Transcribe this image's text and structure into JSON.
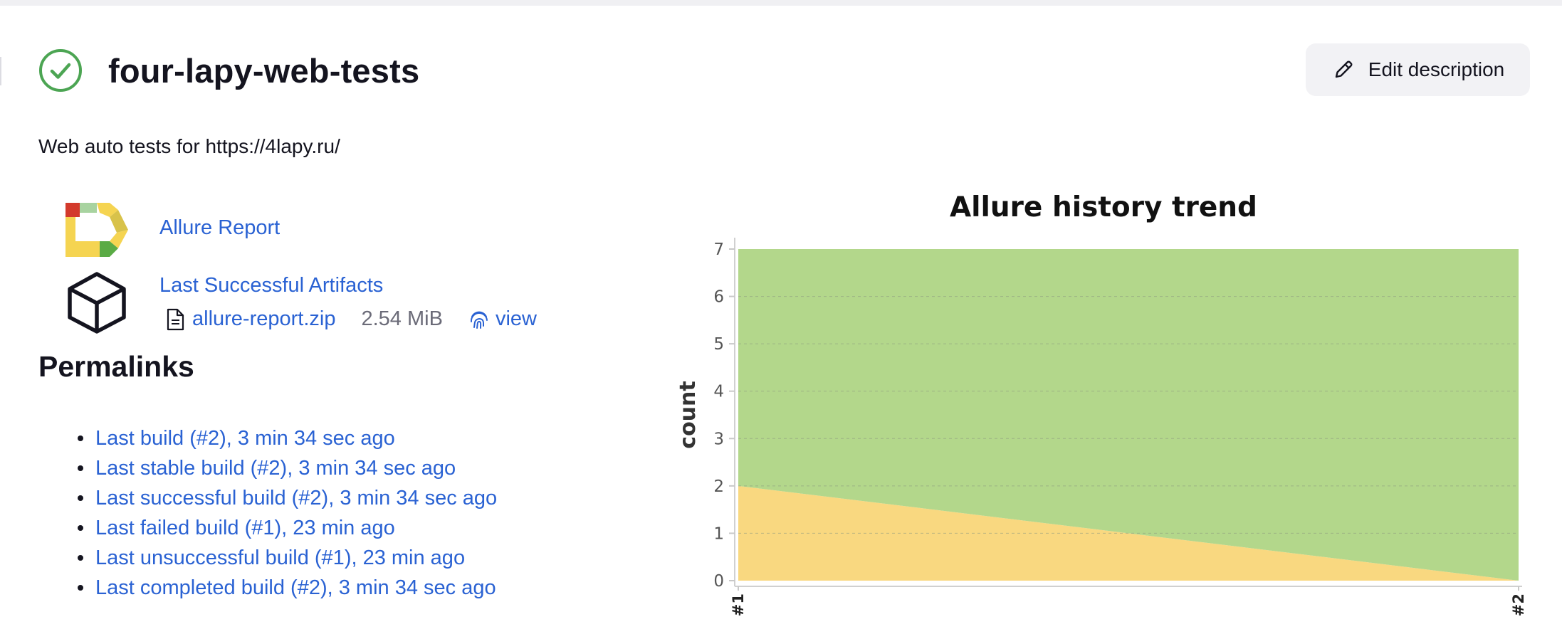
{
  "job": {
    "title": "four-lapy-web-tests",
    "status": "success",
    "description": "Web auto tests for https://4lapy.ru/"
  },
  "header": {
    "edit_description_label": "Edit description"
  },
  "actions": {
    "allure_report_label": "Allure Report",
    "last_successful_artifacts_label": "Last Successful Artifacts",
    "artifact": {
      "filename": "allure-report.zip",
      "size": "2.54 MiB",
      "view_label": "view"
    }
  },
  "permalinks": {
    "title": "Permalinks",
    "items": [
      "Last build (#2), 3 min 34 sec ago",
      "Last stable build (#2), 3 min 34 sec ago",
      "Last successful build (#2), 3 min 34 sec ago",
      "Last failed build (#1), 23 min ago",
      "Last unsuccessful build (#1), 23 min ago",
      "Last completed build (#2), 3 min 34 sec ago"
    ]
  },
  "icons": {
    "status": "check-circle-icon",
    "edit": "pencil-icon",
    "allure": "allure-logo",
    "artifacts": "box-icon",
    "file": "file-icon",
    "view": "fingerprint-icon"
  },
  "colors": {
    "link": "#2a62d3",
    "success": "#4ca553",
    "passed_area": "#b3d78b",
    "broken_area": "#f9d880"
  },
  "chart_data": {
    "type": "area",
    "title": "Allure history trend",
    "ylabel": "count",
    "xlabel": "",
    "categories": [
      "#1",
      "#2"
    ],
    "stacked": true,
    "ylim": [
      0,
      7
    ],
    "yticks": [
      "0",
      "1",
      "2",
      "3",
      "4",
      "5",
      "6",
      "7"
    ],
    "grid": true,
    "legend": "none",
    "series": [
      {
        "values": [
          2,
          0
        ],
        "color": "#f9d880"
      },
      {
        "values": [
          5,
          7
        ],
        "color": "#b3d78b"
      }
    ]
  }
}
